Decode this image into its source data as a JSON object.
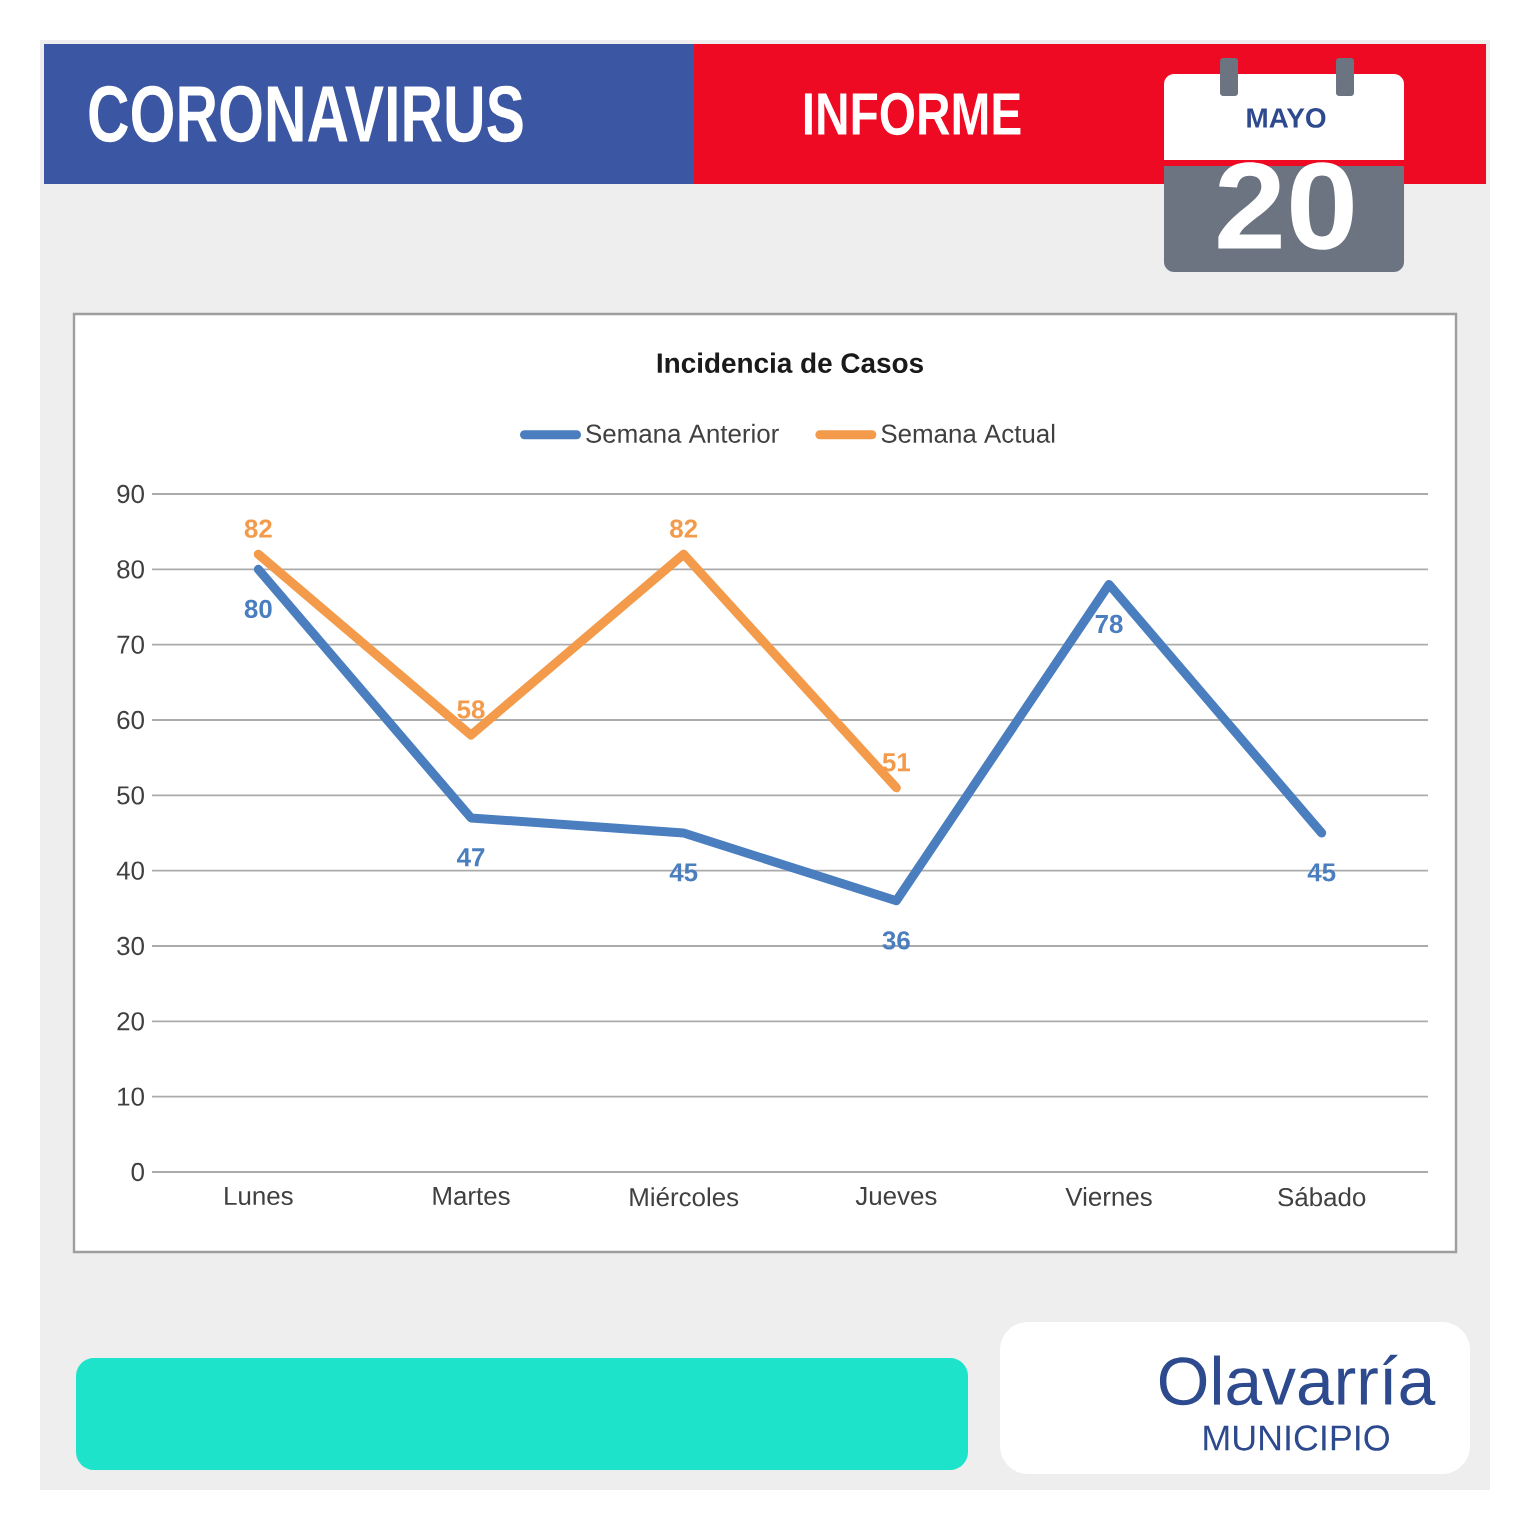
{
  "chart_data": {
    "type": "line",
    "title": "Incidencia de Casos",
    "categories": [
      "Lunes",
      "Martes",
      "Miércoles",
      "Jueves",
      "Viernes",
      "Sábado"
    ],
    "series": [
      {
        "name": "Semana Anterior",
        "color": "#4a7ebf",
        "values": [
          80,
          47,
          45,
          36,
          78,
          45
        ]
      },
      {
        "name": "Semana Actual",
        "color": "#f39b4b",
        "values": [
          82,
          58,
          82,
          51,
          null,
          null
        ]
      }
    ],
    "ylim": [
      0,
      90
    ],
    "yticks": [
      0,
      10,
      20,
      30,
      40,
      50,
      60,
      70,
      80,
      90
    ],
    "grid": "y",
    "legend": "top",
    "line_style": "solid",
    "data_labels": true,
    "annotations": [
      "CORONAVIRUS",
      "INFORME",
      "MAYO",
      "20",
      "Olavarría",
      "MUNICIPIO"
    ]
  }
}
